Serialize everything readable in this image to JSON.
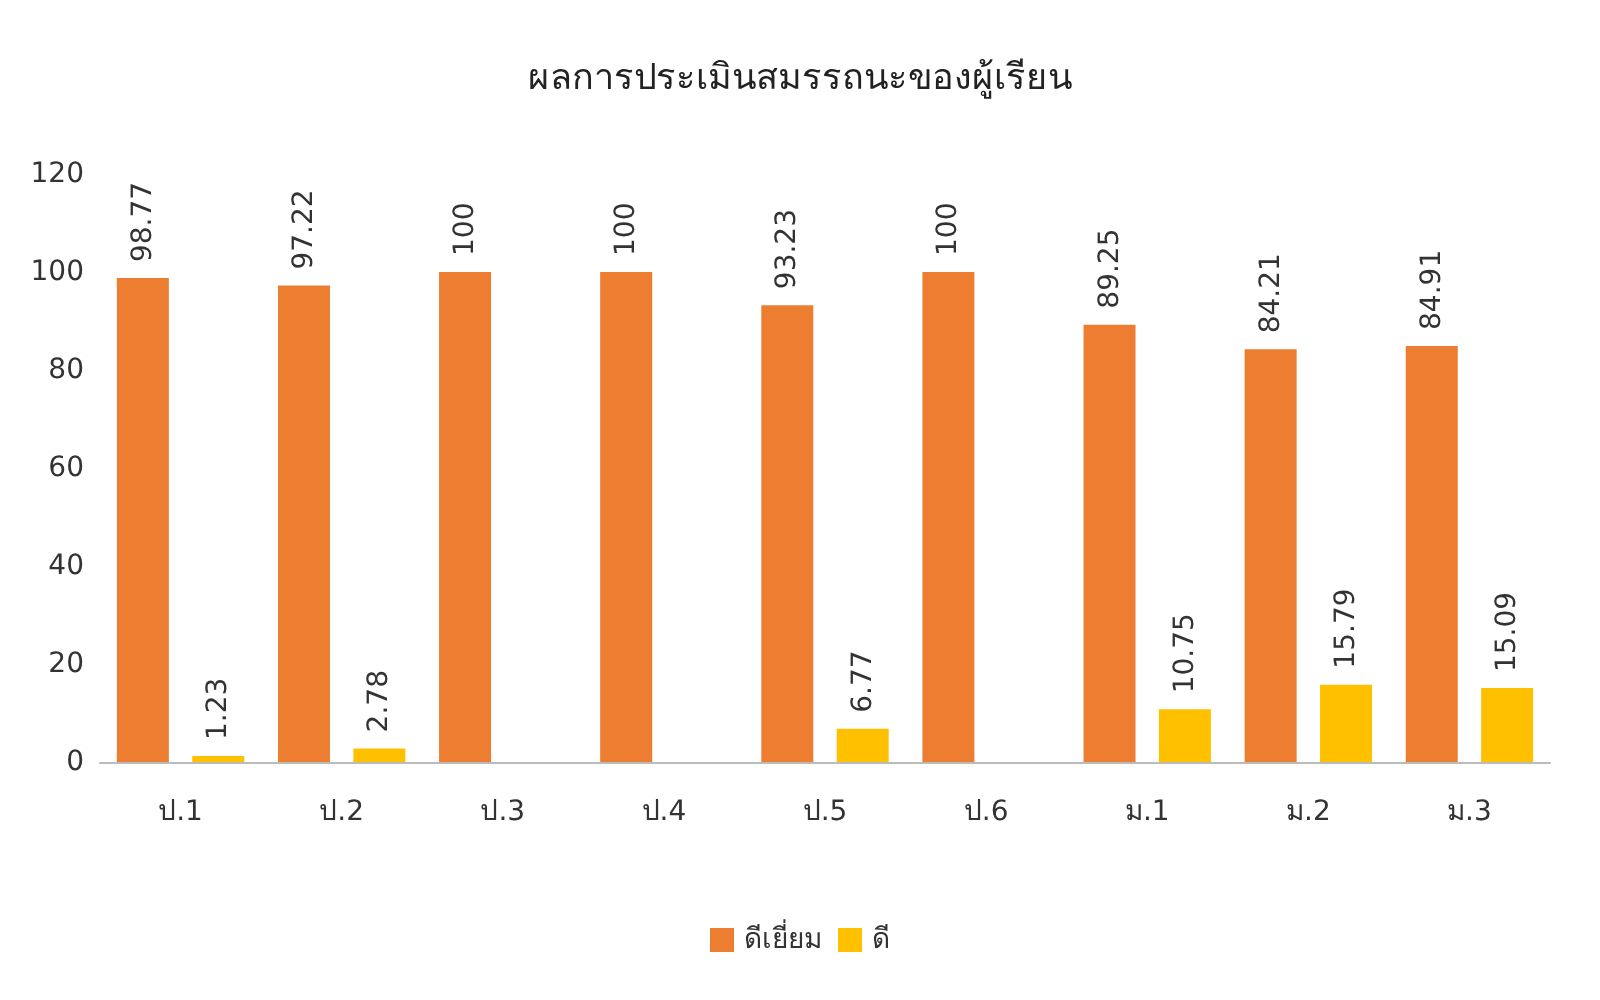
{
  "chart_data": {
    "type": "bar",
    "title": "ผลการประเมินสมรรถนะของผู้เรียน",
    "categories": [
      "ป.1",
      "ป.2",
      "ป.3",
      "ป.4",
      "ป.5",
      "ป.6",
      "ม.1",
      "ม.2",
      "ม.3"
    ],
    "series": [
      {
        "name": "ดีเยี่ยม",
        "color": "#ed7d31",
        "values": [
          98.77,
          97.22,
          100,
          100,
          93.23,
          100,
          89.25,
          84.21,
          84.91
        ]
      },
      {
        "name": "ดี",
        "color": "#ffc000",
        "values": [
          1.23,
          2.78,
          null,
          null,
          6.77,
          null,
          10.75,
          15.79,
          15.09
        ]
      }
    ],
    "ylim": [
      0,
      120
    ],
    "yticks": [
      0,
      20,
      40,
      60,
      80,
      100,
      120
    ],
    "grid": false,
    "legend": "bottom",
    "data_labels": true
  }
}
